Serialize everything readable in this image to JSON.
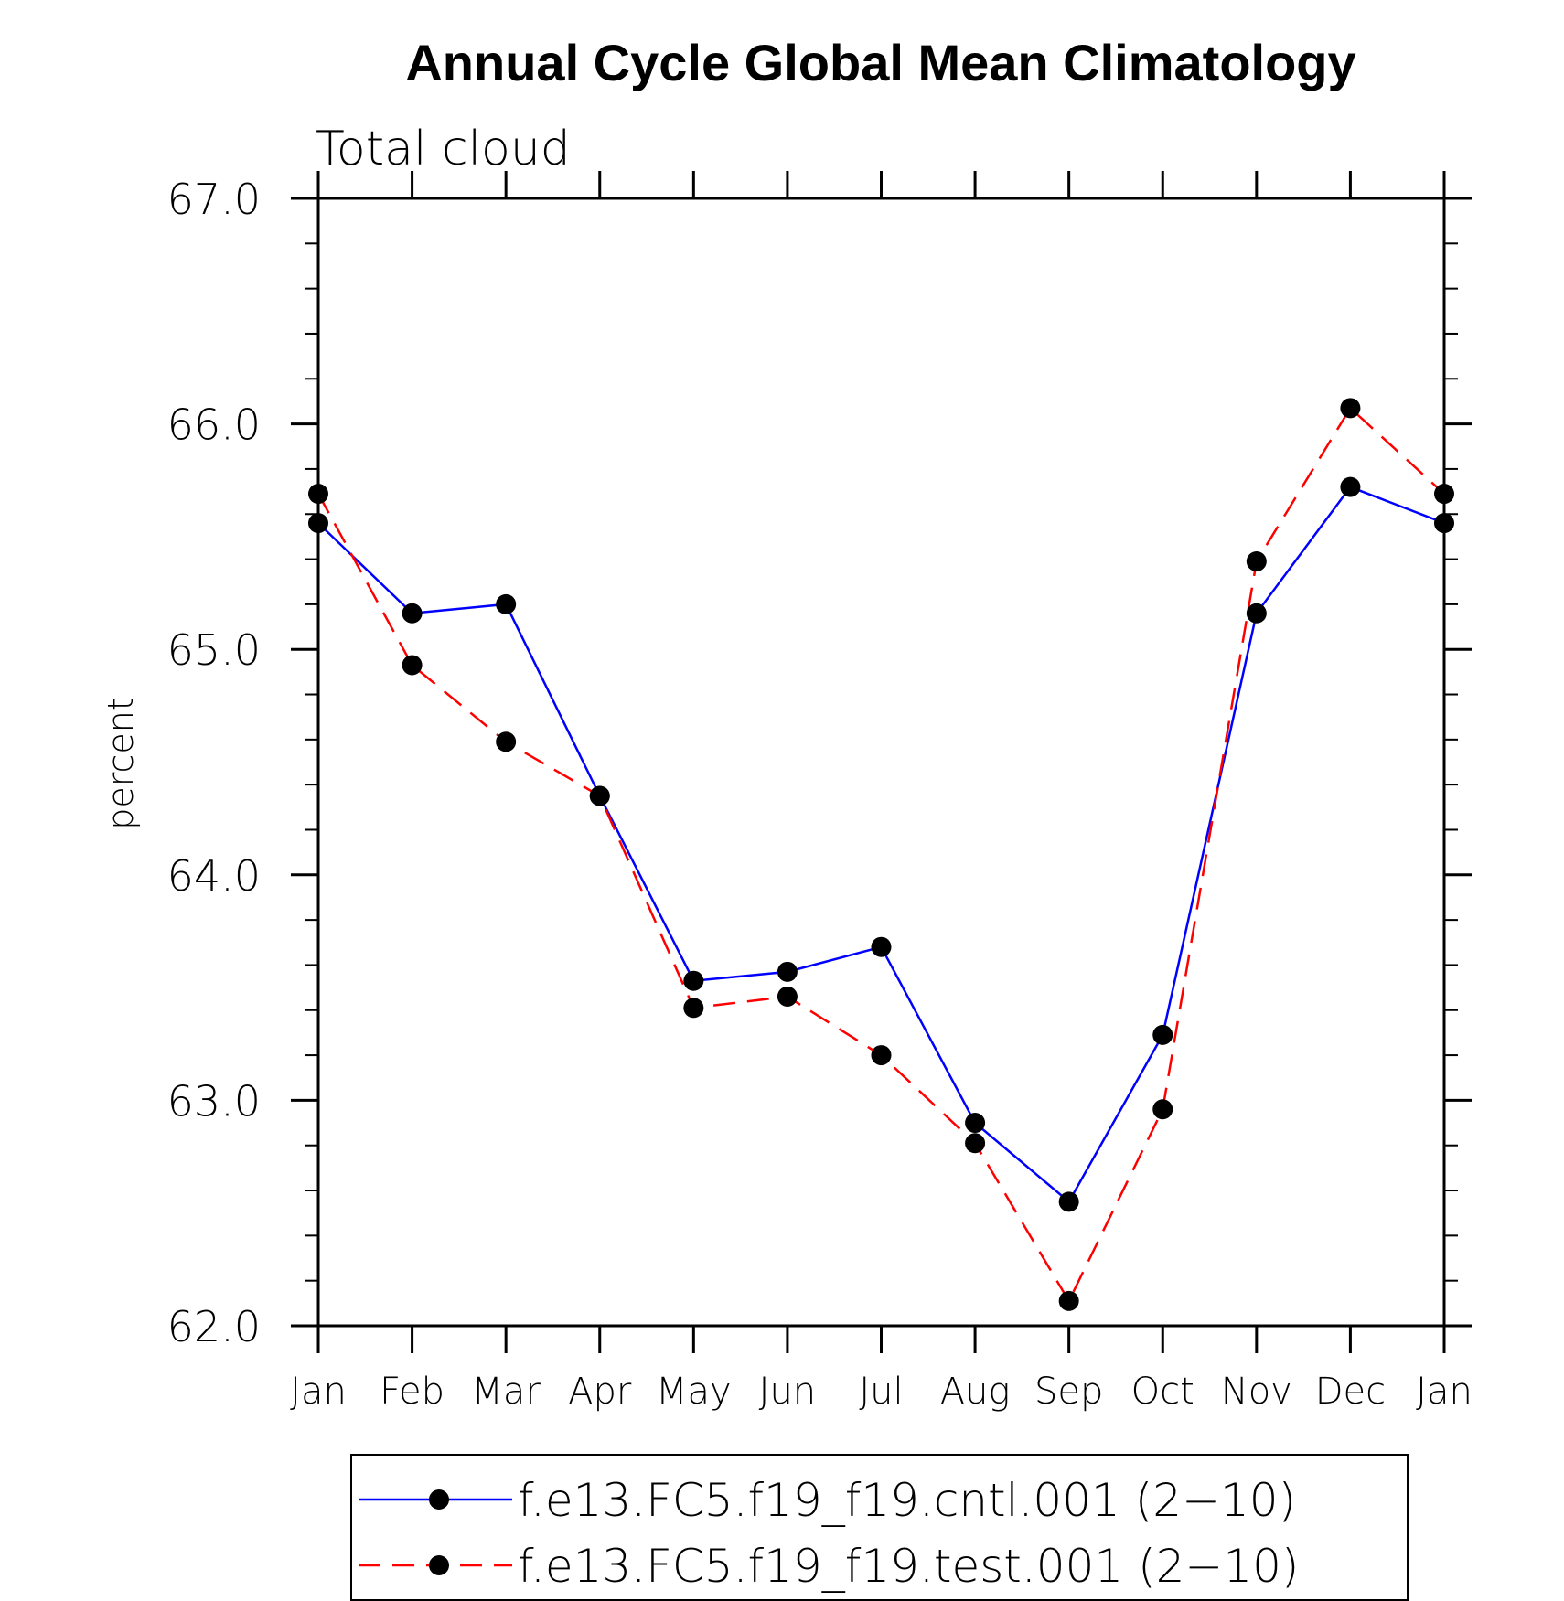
{
  "chart_data": {
    "type": "line",
    "title": "Annual Cycle Global Mean Climatology",
    "subtitle": "Total cloud",
    "xlabel": "",
    "ylabel": "percent",
    "categories": [
      "Jan",
      "Feb",
      "Mar",
      "Apr",
      "May",
      "Jun",
      "Jul",
      "Aug",
      "Sep",
      "Oct",
      "Nov",
      "Dec",
      "Jan"
    ],
    "ylim": [
      62.0,
      67.0
    ],
    "yticks": [
      "62.0",
      "63.0",
      "64.0",
      "65.0",
      "66.0",
      "67.0"
    ],
    "grid": false,
    "legend_position": "bottom",
    "series": [
      {
        "name": "f.e13.FC5.f19_f19.cntl.001 (2−10)",
        "color": "#0000ff",
        "dash": "solid",
        "marker": "filled-circle",
        "values": [
          65.56,
          65.16,
          65.2,
          64.35,
          63.53,
          63.57,
          63.68,
          62.9,
          62.55,
          63.29,
          65.16,
          65.72,
          65.56
        ]
      },
      {
        "name": "f.e13.FC5.f19_f19.test.001 (2−10)",
        "color": "#ff0000",
        "dash": "dashed",
        "marker": "filled-circle",
        "values": [
          65.69,
          64.93,
          64.59,
          64.35,
          63.41,
          63.46,
          63.2,
          62.81,
          62.11,
          62.96,
          65.39,
          66.07,
          65.69
        ]
      }
    ]
  }
}
